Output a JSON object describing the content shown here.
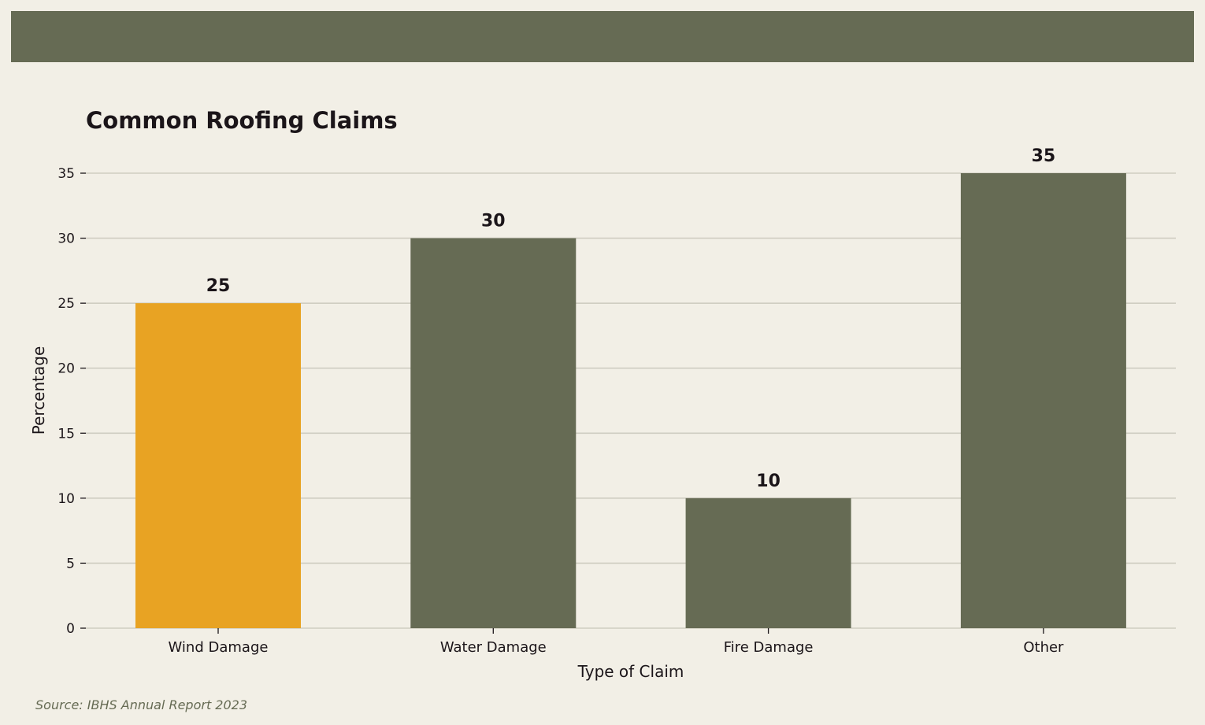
{
  "colors": {
    "background": "#f2efe6",
    "band": "#666b54",
    "highlight": "#e8a323",
    "bar": "#666b54",
    "grid": "#cfcdc1",
    "text": "#1b1519",
    "source_text": "#666b54"
  },
  "chart_data": {
    "type": "bar",
    "title": "Common Roofing Claims",
    "xlabel": "Type of Claim",
    "ylabel": "Percentage",
    "categories": [
      "Wind Damage",
      "Water Damage",
      "Fire Damage",
      "Other"
    ],
    "values": [
      25,
      30,
      10,
      35
    ],
    "highlight_index": 0,
    "ylim": [
      0,
      35
    ],
    "yticks": [
      0,
      5,
      10,
      15,
      20,
      25,
      30,
      35
    ],
    "grid": true,
    "data_labels": true
  },
  "footer": {
    "source": "Source: IBHS Annual Report 2023"
  }
}
